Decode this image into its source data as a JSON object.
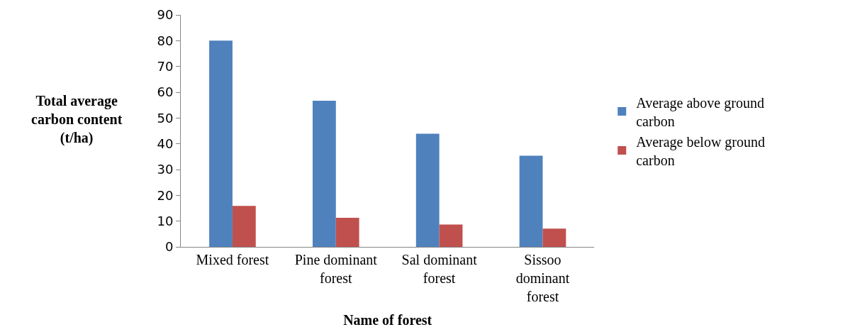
{
  "chart_data": {
    "type": "bar",
    "xlabel": "Name of forest",
    "ylabel": "Total average\ncarbon content\n(t/ha)",
    "categories": [
      "Mixed forest",
      "Pine dominant\nforest",
      "Sal dominant\nforest",
      "Sissoo\ndominant\nforest"
    ],
    "series": [
      {
        "name": "Average above ground\ncarbon",
        "color": "#4f81bd",
        "values": [
          80,
          56.7,
          43.9,
          35.4
        ]
      },
      {
        "name": "Average below ground\ncarbon",
        "color": "#c0504d",
        "values": [
          15.9,
          11.3,
          8.7,
          7.1
        ]
      }
    ],
    "ylim": [
      0,
      90
    ],
    "yticks": [
      0,
      10,
      20,
      30,
      40,
      50,
      60,
      70,
      80,
      90
    ],
    "legend": "right"
  }
}
